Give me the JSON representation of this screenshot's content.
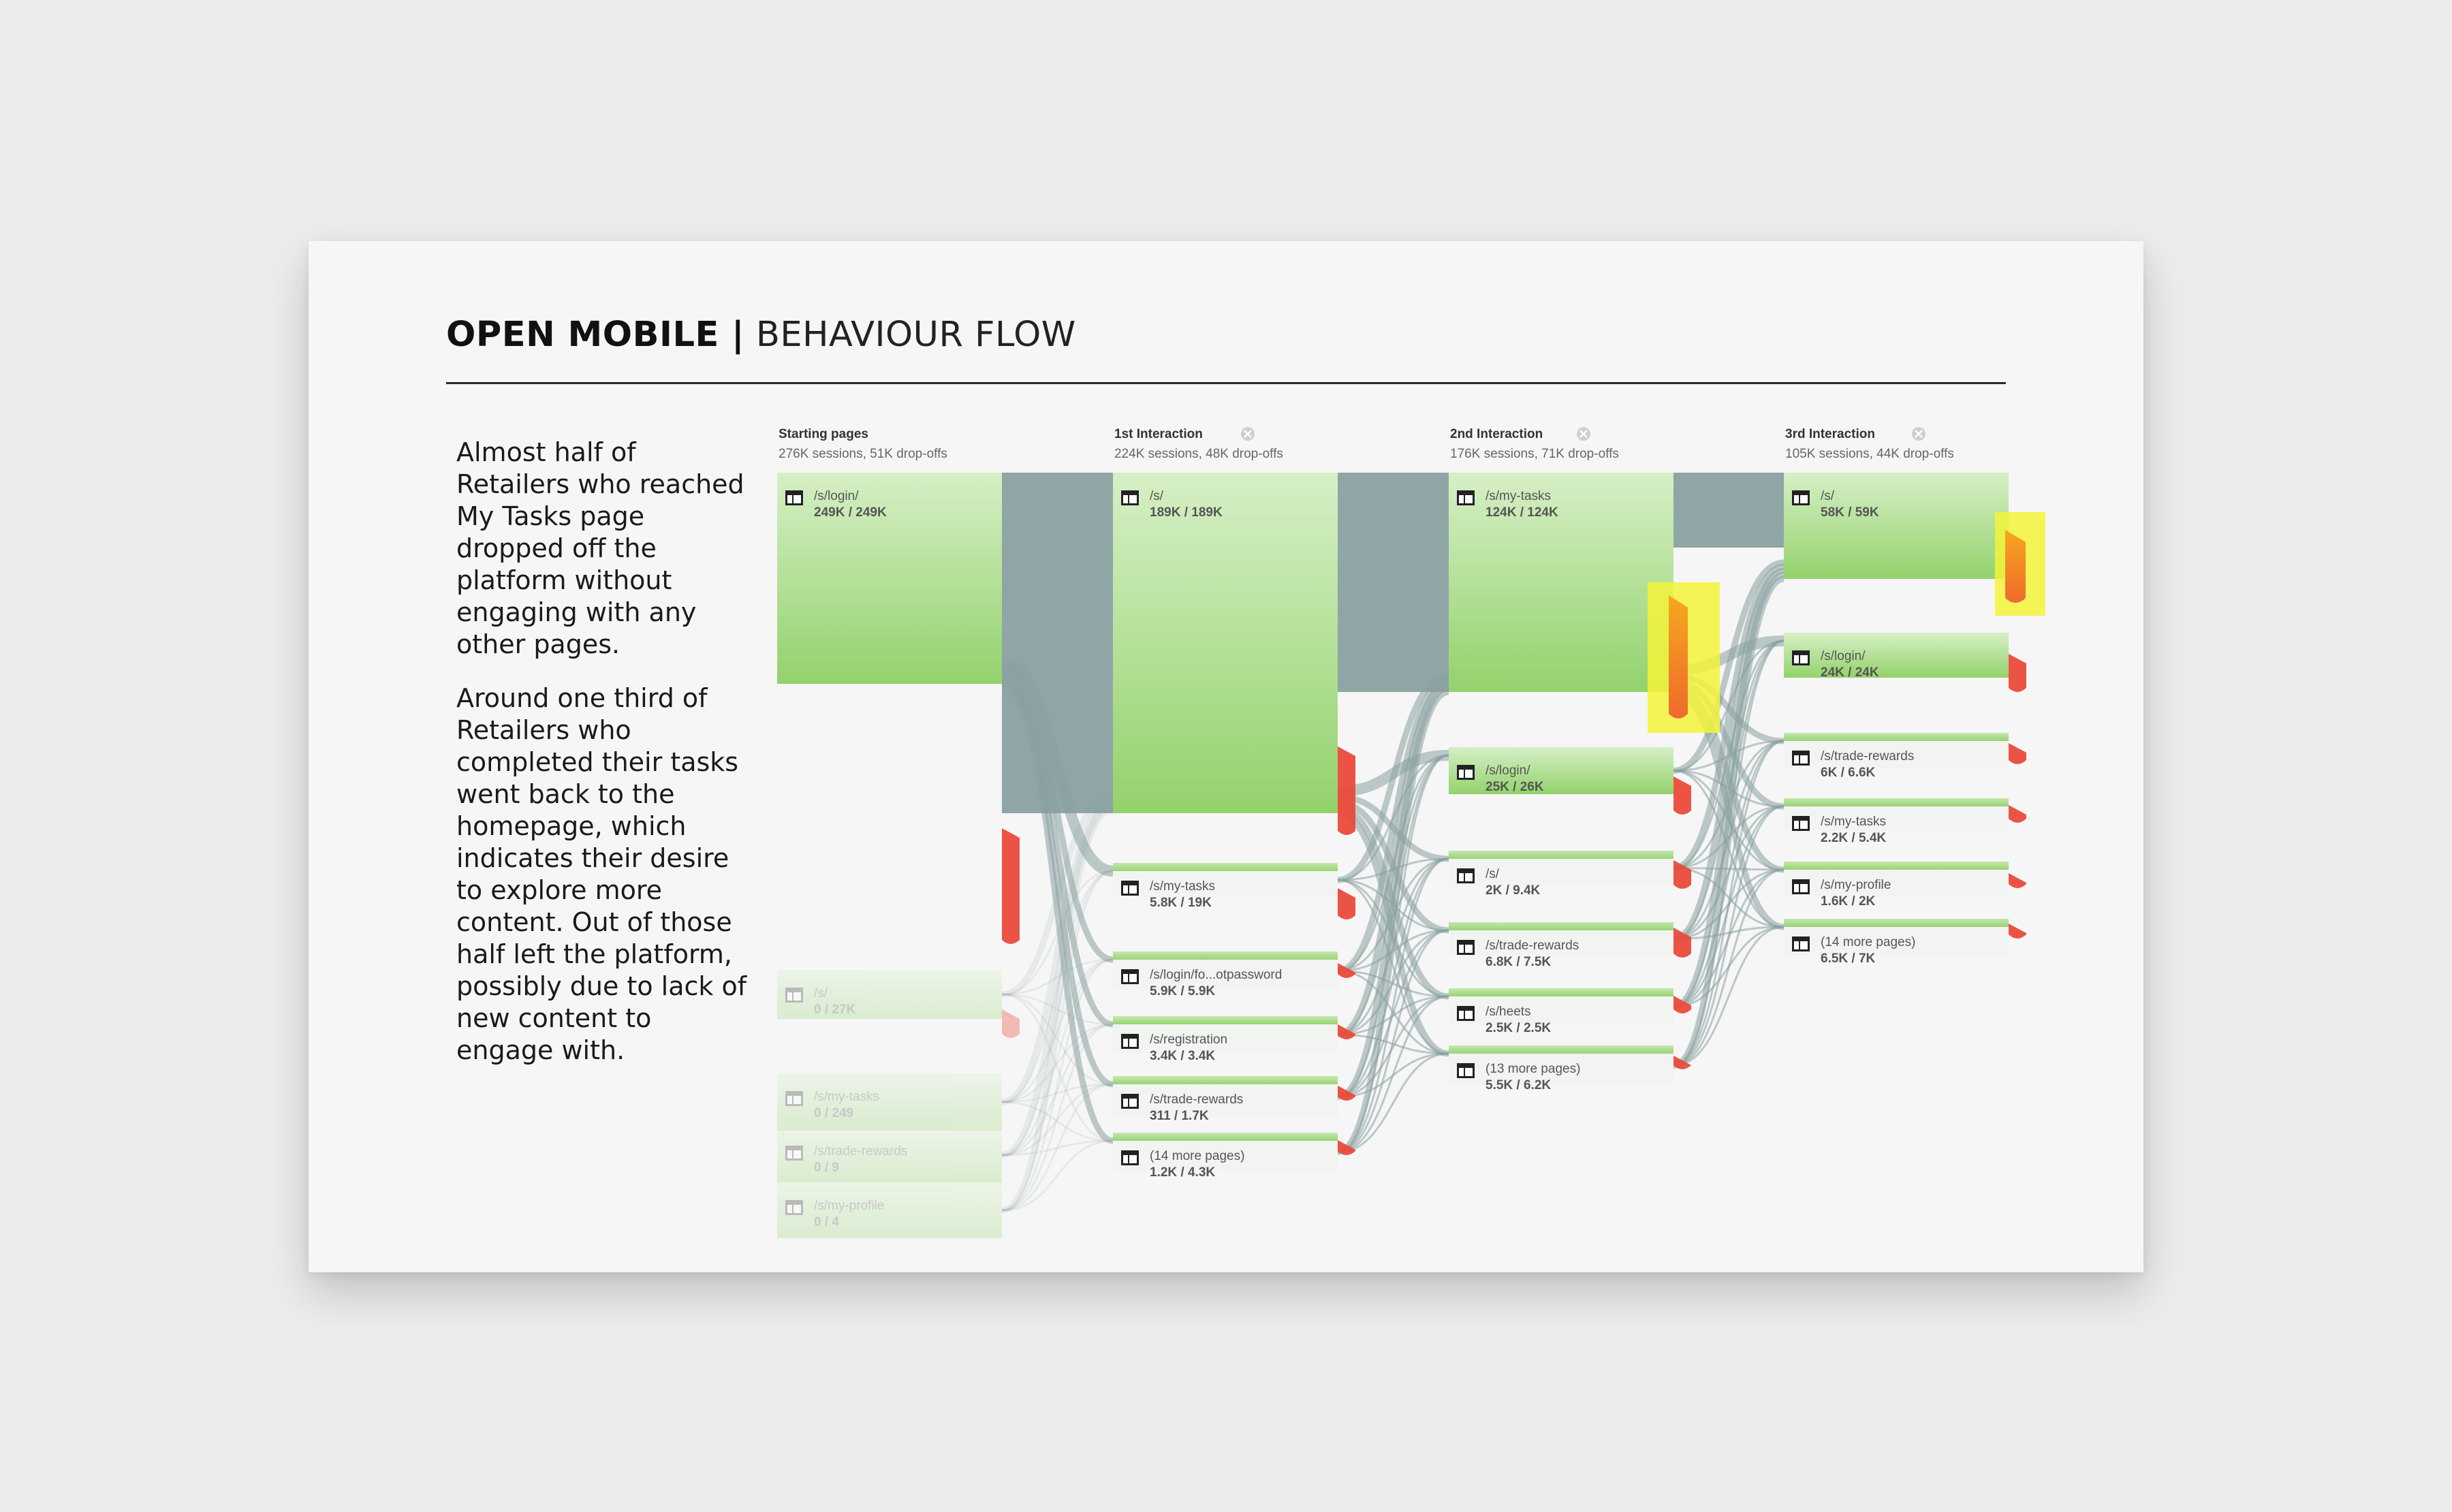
{
  "slide": {
    "title_bold": "OPEN MOBILE |",
    "title_light": "BEHAVIOUR FLOW",
    "paragraphs": [
      "Almost half of Retailers who reached My Tasks page dropped off the platform without engaging with any other pages.",
      "Around one third of Retailers who completed their tasks went back to the homepage, which indicates their desire to explore more content. Out of  those half left the platform, possibly due to lack of new content to engage with."
    ]
  },
  "flow": {
    "colors": {
      "node_green_top": "#d6efc6",
      "node_green_bottom": "#93d26c",
      "link_grey": "#8aa0a0",
      "dropoff_red": "#ea4b3b",
      "highlight_yellow": "#f3f33a",
      "highlight_orange": "#f49b1d"
    },
    "columns": [
      {
        "title": "Starting pages",
        "subtitle": "276K sessions, 51K drop-offs",
        "has_close_icon": false,
        "nodes": [
          {
            "page": "/s/login/",
            "value": "249K / 249K",
            "faded": false
          },
          {
            "page": "/s/",
            "value": "0 / 27K",
            "faded": true
          },
          {
            "page": "/s/my-tasks",
            "value": "0 / 249",
            "faded": true
          },
          {
            "page": "/s/trade-rewards",
            "value": "0 / 9",
            "faded": true
          },
          {
            "page": "/s/my-profile",
            "value": "0 / 4",
            "faded": true
          }
        ]
      },
      {
        "title": "1st Interaction",
        "subtitle": "224K sessions, 48K drop-offs",
        "has_close_icon": true,
        "nodes": [
          {
            "page": "/s/",
            "value": "189K / 189K",
            "faded": false
          },
          {
            "page": "/s/my-tasks",
            "value": "5.8K / 19K",
            "faded": false
          },
          {
            "page": "/s/login/fo...otpassword",
            "value": "5.9K / 5.9K",
            "faded": false
          },
          {
            "page": "/s/registration",
            "value": "3.4K / 3.4K",
            "faded": false
          },
          {
            "page": "/s/trade-rewards",
            "value": "311 / 1.7K",
            "faded": false
          },
          {
            "page": "(14 more pages)",
            "value": "1.2K / 4.3K",
            "faded": false
          }
        ]
      },
      {
        "title": "2nd Interaction",
        "subtitle": "176K sessions, 71K drop-offs",
        "has_close_icon": true,
        "nodes": [
          {
            "page": "/s/my-tasks",
            "value": "124K / 124K",
            "faded": false
          },
          {
            "page": "/s/login/",
            "value": "25K / 26K",
            "faded": false
          },
          {
            "page": "/s/",
            "value": "2K / 9.4K",
            "faded": false
          },
          {
            "page": "/s/trade-rewards",
            "value": "6.8K / 7.5K",
            "faded": false
          },
          {
            "page": "/s/heets",
            "value": "2.5K / 2.5K",
            "faded": false
          },
          {
            "page": "(13 more pages)",
            "value": "5.5K / 6.2K",
            "faded": false
          }
        ]
      },
      {
        "title": "3rd Interaction",
        "subtitle": "105K sessions, 44K drop-offs",
        "has_close_icon": true,
        "nodes": [
          {
            "page": "/s/",
            "value": "58K / 59K",
            "faded": false
          },
          {
            "page": "/s/login/",
            "value": "24K / 24K",
            "faded": false
          },
          {
            "page": "/s/trade-rewards",
            "value": "6K / 6.6K",
            "faded": false
          },
          {
            "page": "/s/my-tasks",
            "value": "2.2K / 5.4K",
            "faded": false
          },
          {
            "page": "/s/my-profile",
            "value": "1.6K / 2K",
            "faded": false
          },
          {
            "page": "(14 more pages)",
            "value": "6.5K / 7K",
            "faded": false
          }
        ]
      }
    ]
  }
}
